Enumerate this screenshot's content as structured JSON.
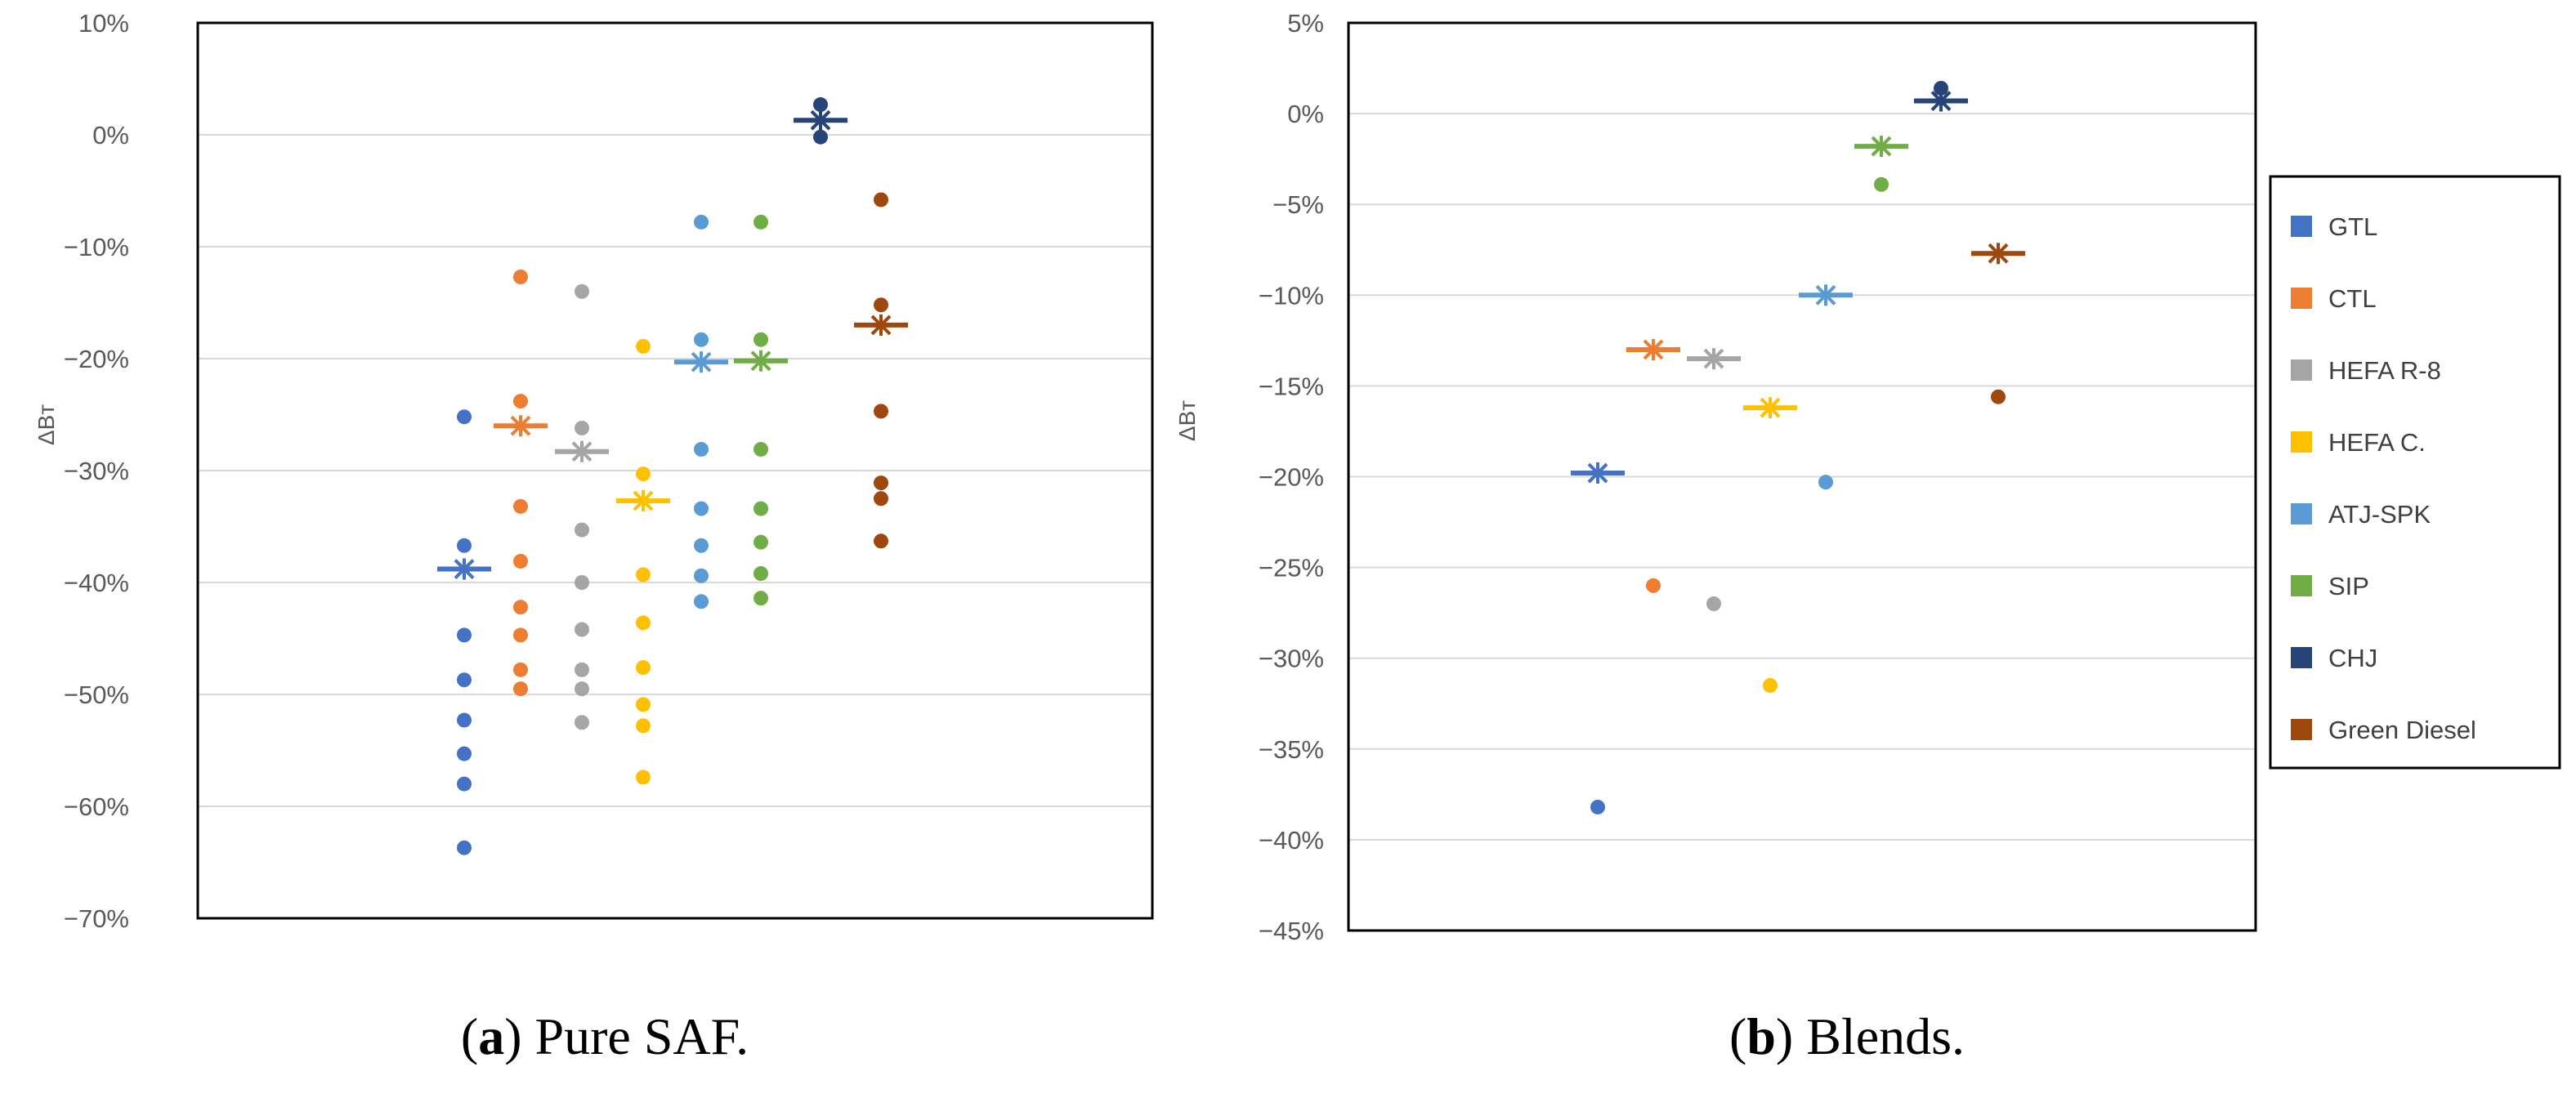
{
  "chart_data": [
    {
      "type": "scatter",
      "title": "",
      "ylabel": "ΔBт",
      "xlabel": "",
      "ylim": [
        -70,
        10
      ],
      "yticks": [
        10,
        0,
        -10,
        -20,
        -30,
        -40,
        -50,
        -60,
        -70
      ],
      "ytick_labels": [
        "10%",
        "0%",
        "−10%",
        "−20%",
        "−30%",
        "−40%",
        "−50%",
        "−60%",
        "−70%"
      ],
      "grid": true,
      "caption": {
        "letter": "a",
        "text": "Pure SAF."
      },
      "series": [
        {
          "name": "GTL",
          "color": "#4472C4",
          "points": [
            -25.2,
            -36.7,
            -44.7,
            -48.7,
            -52.3,
            -55.3,
            -58.0,
            -63.7
          ],
          "mean": -38.8
        },
        {
          "name": "CTL",
          "color": "#ED7D31",
          "points": [
            -12.7,
            -23.8,
            -33.2,
            -38.1,
            -42.2,
            -44.7,
            -47.8,
            -49.5
          ],
          "mean": -26.0
        },
        {
          "name": "HEFA R-8",
          "color": "#A5A5A5",
          "points": [
            -14.0,
            -26.2,
            -35.3,
            -40.0,
            -44.2,
            -47.8,
            -49.5,
            -52.5
          ],
          "mean": -28.3
        },
        {
          "name": "HEFA C.",
          "color": "#FFC000",
          "points": [
            -18.9,
            -30.3,
            -39.3,
            -43.6,
            -47.6,
            -50.9,
            -52.8,
            -57.4
          ],
          "mean": -32.7
        },
        {
          "name": "ATJ-SPK",
          "color": "#5B9BD5",
          "points": [
            -7.8,
            -18.3,
            -28.1,
            -33.4,
            -36.7,
            -39.4,
            -41.7
          ],
          "mean": -20.3
        },
        {
          "name": "SIP",
          "color": "#70AD47",
          "points": [
            -7.8,
            -18.3,
            -28.1,
            -33.4,
            -36.4,
            -39.2,
            -41.4
          ],
          "mean": -20.2
        },
        {
          "name": "CHJ",
          "color": "#264478",
          "points": [
            2.7,
            -0.2
          ],
          "mean": 1.3
        },
        {
          "name": "Green Diesel",
          "color": "#9E480E",
          "points": [
            -5.8,
            -15.2,
            -24.7,
            -31.1,
            -32.5,
            -36.3
          ],
          "mean": -17.0
        }
      ]
    },
    {
      "type": "scatter",
      "title": "",
      "ylabel": "ΔBт",
      "xlabel": "",
      "ylim": [
        -45,
        5
      ],
      "yticks": [
        5,
        0,
        -5,
        -10,
        -15,
        -20,
        -25,
        -30,
        -35,
        -40,
        -45
      ],
      "ytick_labels": [
        "5%",
        "0%",
        "−5%",
        "−10%",
        "−15%",
        "−20%",
        "−25%",
        "−30%",
        "−35%",
        "−40%",
        "−45%"
      ],
      "grid": true,
      "legend": "right",
      "caption": {
        "letter": "b",
        "text": "Blends."
      },
      "series": [
        {
          "name": "GTL",
          "color": "#4472C4",
          "points": [
            -38.2
          ],
          "mean": -19.8
        },
        {
          "name": "CTL",
          "color": "#ED7D31",
          "points": [
            -26.0
          ],
          "mean": -13.0
        },
        {
          "name": "HEFA R-8",
          "color": "#A5A5A5",
          "points": [
            -27.0
          ],
          "mean": -13.5
        },
        {
          "name": "HEFA C.",
          "color": "#FFC000",
          "points": [
            -31.5
          ],
          "mean": -16.2
        },
        {
          "name": "ATJ-SPK",
          "color": "#5B9BD5",
          "points": [
            -20.3
          ],
          "mean": -10.0
        },
        {
          "name": "SIP",
          "color": "#70AD47",
          "points": [
            -3.9
          ],
          "mean": -1.8
        },
        {
          "name": "CHJ",
          "color": "#264478",
          "points": [
            1.4
          ],
          "mean": 0.7
        },
        {
          "name": "Green Diesel",
          "color": "#9E480E",
          "points": [
            -15.6
          ],
          "mean": -7.7
        }
      ]
    }
  ]
}
